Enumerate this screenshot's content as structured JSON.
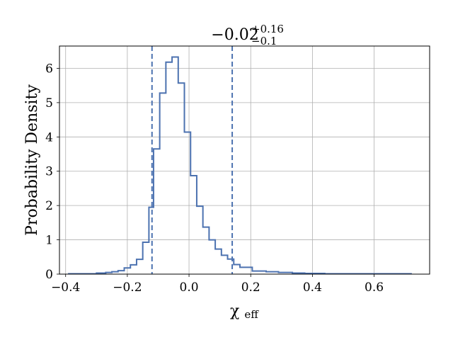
{
  "chart_data": {
    "type": "histogram",
    "title": {
      "base": "−0.02",
      "sup": "+0.16",
      "sub": "−0.1"
    },
    "xlabel": {
      "base": "χ",
      "sub": "eff"
    },
    "ylabel": "Probability Density",
    "xlim": [
      -0.42,
      0.78
    ],
    "ylim": [
      0,
      6.65
    ],
    "xticks": [
      {
        "value": -0.4,
        "label": "−0.4"
      },
      {
        "value": -0.2,
        "label": "−0.2"
      },
      {
        "value": 0.0,
        "label": "0.0"
      },
      {
        "value": 0.2,
        "label": "0.2"
      },
      {
        "value": 0.4,
        "label": "0.4"
      },
      {
        "value": 0.6,
        "label": "0.6"
      }
    ],
    "yticks": [
      {
        "value": 0,
        "label": "0"
      },
      {
        "value": 1,
        "label": "1"
      },
      {
        "value": 2,
        "label": "2"
      },
      {
        "value": 3,
        "label": "3"
      },
      {
        "value": 4,
        "label": "4"
      },
      {
        "value": 5,
        "label": "5"
      },
      {
        "value": 6,
        "label": "6"
      }
    ],
    "grid": true,
    "line_color": "#4c72b0",
    "bin_edges": [
      -0.39,
      -0.3,
      -0.27,
      -0.25,
      -0.23,
      -0.21,
      -0.19,
      -0.17,
      -0.15,
      -0.13,
      -0.115,
      -0.095,
      -0.075,
      -0.055,
      -0.035,
      -0.015,
      0.005,
      0.025,
      0.045,
      0.065,
      0.085,
      0.105,
      0.125,
      0.145,
      0.165,
      0.185,
      0.205,
      0.25,
      0.29,
      0.315,
      0.335,
      0.375,
      0.44,
      0.72
    ],
    "densities": [
      0.01,
      0.03,
      0.05,
      0.07,
      0.1,
      0.18,
      0.27,
      0.43,
      0.93,
      1.95,
      3.65,
      5.28,
      6.18,
      6.33,
      5.57,
      4.14,
      2.87,
      1.98,
      1.37,
      1.0,
      0.73,
      0.55,
      0.44,
      0.28,
      0.2,
      0.2,
      0.09,
      0.07,
      0.05,
      0.05,
      0.03,
      0.02,
      0.01
    ],
    "vlines": [
      -0.12,
      0.14
    ],
    "vline_style": "dashed"
  }
}
